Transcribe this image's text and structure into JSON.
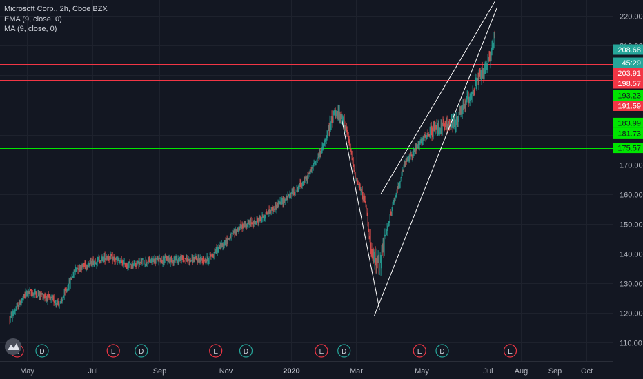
{
  "legend": {
    "symbol": "Microsoft Corp., 2h, Cboe BZX",
    "ema": "EMA (9, close, 0)",
    "ma": "MA (9, close, 0)"
  },
  "chart_data": {
    "type": "candlestick",
    "ylim": [
      107,
      224
    ],
    "x_ticks": [
      "May",
      "Jul",
      "Sep",
      "Nov",
      "2020",
      "Mar",
      "May",
      "Jul",
      "Aug",
      "Sep",
      "Oct"
    ],
    "y_ticks": [
      "220.00",
      "210.00",
      "200.00",
      "190.00",
      "180.00",
      "170.00",
      "160.00",
      "150.00",
      "140.00",
      "130.00",
      "120.00",
      "110.00"
    ],
    "y_tick_values": [
      220,
      210,
      200,
      190,
      180,
      170,
      160,
      150,
      140,
      130,
      120,
      110
    ],
    "last_price": {
      "value": 208.68,
      "label": "208.68",
      "timer": "45:29",
      "color": "#26a69a"
    },
    "horizontal_levels": [
      {
        "value": 203.91,
        "label": "203.91",
        "color": "#f23645"
      },
      {
        "value": 198.57,
        "label": "198.57",
        "color": "#f23645"
      },
      {
        "value": 193.23,
        "label": "193.23",
        "color": "#00e600"
      },
      {
        "value": 191.59,
        "label": "191.59",
        "color": "#f23645"
      },
      {
        "value": 183.99,
        "label": "183.99",
        "color": "#00e600"
      },
      {
        "value": 181.73,
        "label": "181.73",
        "color": "#00e600"
      },
      {
        "value": 175.57,
        "label": "175.57",
        "color": "#00e600"
      }
    ],
    "price_path": [
      [
        "2019-04-15",
        118
      ],
      [
        "2019-05-01",
        127
      ],
      [
        "2019-05-15",
        126
      ],
      [
        "2019-06-01",
        123
      ],
      [
        "2019-06-15",
        135
      ],
      [
        "2019-07-01",
        137
      ],
      [
        "2019-07-15",
        139
      ],
      [
        "2019-08-01",
        136
      ],
      [
        "2019-08-15",
        137
      ],
      [
        "2019-09-01",
        138
      ],
      [
        "2019-09-15",
        138
      ],
      [
        "2019-10-01",
        138
      ],
      [
        "2019-10-15",
        138
      ],
      [
        "2019-11-01",
        144
      ],
      [
        "2019-11-15",
        149
      ],
      [
        "2019-12-01",
        151
      ],
      [
        "2019-12-15",
        155
      ],
      [
        "2020-01-01",
        160
      ],
      [
        "2020-01-15",
        165
      ],
      [
        "2020-02-01",
        177
      ],
      [
        "2020-02-10",
        188
      ],
      [
        "2020-02-20",
        184
      ],
      [
        "2020-03-01",
        165
      ],
      [
        "2020-03-10",
        157
      ],
      [
        "2020-03-16",
        138
      ],
      [
        "2020-03-23",
        137
      ],
      [
        "2020-04-01",
        152
      ],
      [
        "2020-04-15",
        170
      ],
      [
        "2020-05-01",
        178
      ],
      [
        "2020-05-15",
        182
      ],
      [
        "2020-06-01",
        184
      ],
      [
        "2020-06-10",
        190
      ],
      [
        "2020-06-20",
        197
      ],
      [
        "2020-07-01",
        203
      ],
      [
        "2020-07-08",
        214
      ]
    ],
    "trend_lines": [
      {
        "from": [
          "2020-02-17",
          185
        ],
        "to": [
          "2020-03-23",
          121
        ],
        "color": "#ffffff"
      },
      {
        "from": [
          "2020-03-18",
          119
        ],
        "to": [
          "2020-07-10",
          223
        ],
        "color": "#ffffff"
      },
      {
        "from": [
          "2020-03-24",
          160
        ],
        "to": [
          "2020-07-08",
          225
        ],
        "color": "#ffffff"
      }
    ],
    "events": [
      {
        "date": "2019-04-22",
        "letter": "E"
      },
      {
        "date": "2019-05-15",
        "letter": "D"
      },
      {
        "date": "2019-07-20",
        "letter": "E"
      },
      {
        "date": "2019-08-15",
        "letter": "D"
      },
      {
        "date": "2019-10-23",
        "letter": "E"
      },
      {
        "date": "2019-11-20",
        "letter": "D"
      },
      {
        "date": "2020-01-29",
        "letter": "E"
      },
      {
        "date": "2020-02-19",
        "letter": "D"
      },
      {
        "date": "2020-04-29",
        "letter": "E"
      },
      {
        "date": "2020-05-20",
        "letter": "D"
      },
      {
        "date": "2020-07-22",
        "letter": "E"
      }
    ],
    "colors": {
      "up": "#26a69a",
      "down": "#ef5350",
      "earnings": "#f23645",
      "dividend": "#26a69a"
    }
  }
}
